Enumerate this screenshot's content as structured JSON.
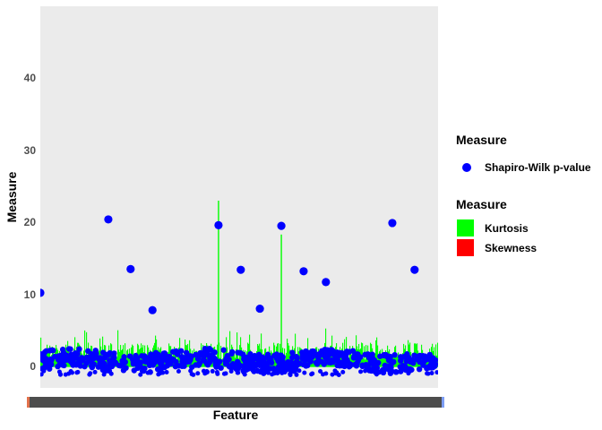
{
  "figure": {
    "background": "#FFFFFF",
    "panel_background": "#EBEBEB"
  },
  "axes": {
    "y": {
      "title": "Measure",
      "tick_labels": [
        "0",
        "10",
        "20",
        "30",
        "40"
      ],
      "tick_color": "#4D4D4D"
    },
    "x": {
      "title": "Feature",
      "tick_band_color": "#4D4D4D",
      "tick_band_note": "overlapping unreadable feature tick labels rendered as a solid dark band",
      "left_sliver_color": "#E2714B",
      "right_sliver_color": "#7C9DF5"
    }
  },
  "legends": [
    {
      "title": "Measure",
      "items": [
        {
          "label": "Shapiro-Wilk p-value",
          "swatch": "point",
          "color": "#0000FF"
        }
      ]
    },
    {
      "title": "Measure",
      "items": [
        {
          "label": "Kurtosis",
          "swatch": "square",
          "color": "#00FF00"
        },
        {
          "label": "Skewness",
          "swatch": "square",
          "color": "#FF0000"
        }
      ]
    }
  ],
  "chart_data": {
    "type": "scatter",
    "title": "",
    "xlabel": "Feature",
    "ylabel": "Measure",
    "x_axis_type": "categorical",
    "ylim": [
      -3,
      50
    ],
    "yticks": [
      0,
      10,
      20,
      30,
      40
    ],
    "grid": false,
    "legend_position": "right",
    "series": [
      {
        "name": "Shapiro-Wilk p-value",
        "geom": "point",
        "color": "#0000FF",
        "outliers": [
          {
            "x_frac": 0.0,
            "y": 10.2
          },
          {
            "x_frac": 0.171,
            "y": 20.4
          },
          {
            "x_frac": 0.227,
            "y": 13.5
          },
          {
            "x_frac": 0.282,
            "y": 7.8
          },
          {
            "x_frac": 0.448,
            "y": 19.6
          },
          {
            "x_frac": 0.504,
            "y": 13.4
          },
          {
            "x_frac": 0.552,
            "y": 8.0
          },
          {
            "x_frac": 0.606,
            "y": 19.5
          },
          {
            "x_frac": 0.662,
            "y": 13.2
          },
          {
            "x_frac": 0.718,
            "y": 11.7
          },
          {
            "x_frac": 0.885,
            "y": 19.9
          },
          {
            "x_frac": 0.941,
            "y": 13.4
          }
        ],
        "dense_cluster": {
          "n": 620,
          "y_range": [
            -0.8,
            3.0
          ],
          "seed": 7
        },
        "below_zero_dashes": {
          "n": 90,
          "y_range": [
            -1.2,
            -0.6
          ],
          "seed": 11
        }
      },
      {
        "name": "Kurtosis",
        "geom": "vline",
        "color": "#00FF00",
        "tall_spikes": [
          {
            "x_frac": 0.448,
            "top": 23.0
          },
          {
            "x_frac": 0.606,
            "top": 18.3
          }
        ],
        "grass": {
          "n": 444,
          "height_range": [
            0.8,
            4.8
          ],
          "seed": 3
        }
      },
      {
        "name": "Skewness",
        "geom": "vline",
        "color": "#FF0000"
      }
    ]
  }
}
